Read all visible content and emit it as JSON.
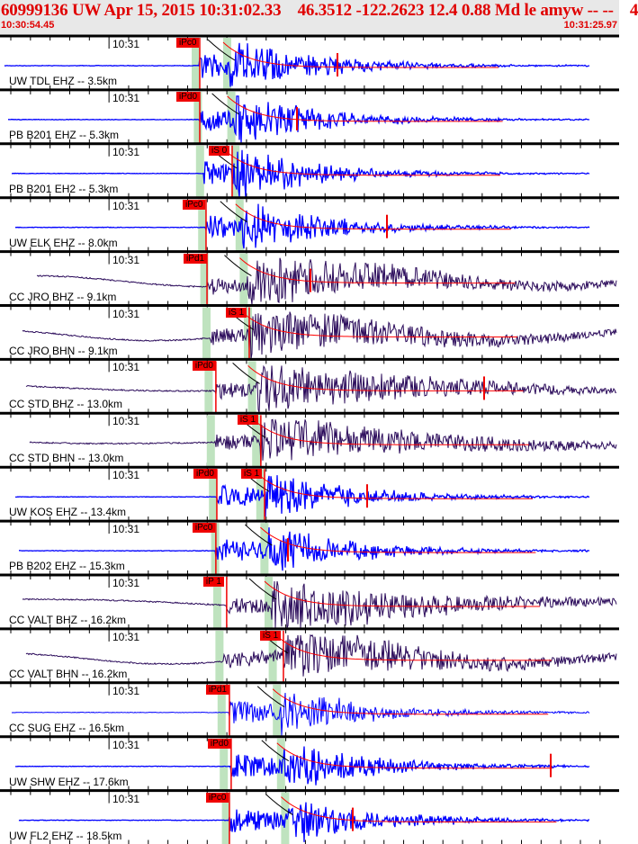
{
  "header": {
    "title": "60999136 UW Apr 15, 2015 10:31:02.33    46.3512 -122.2623 12.4 0.88 Md le amyw -- --    4",
    "start_time": "10:30:54.45",
    "end_time": "10:31:25.97"
  },
  "chart_data": {
    "type": "line",
    "title": "",
    "time_axis": {
      "start": "10:30:54.45",
      "end": "10:31:25.97",
      "tick_label": "10:31",
      "major_tick_seconds": 1
    },
    "colors": {
      "short_period": "#0000ff",
      "broadband": "#2a0a5a",
      "pick": "#f00000",
      "predicted_band": "#bfe3bf",
      "coda_fit": "#ff0000"
    },
    "traces": [
      {
        "label": "UW TDL EHZ -- 3.5km",
        "color": "#0000ff",
        "noise": "flat",
        "picks": [
          {
            "label": "iPc0",
            "time": "10:31:04.62"
          }
        ]
      },
      {
        "label": "PB B201 EHZ -- 5.3km",
        "color": "#0000ff",
        "noise": "flat",
        "picks": [
          {
            "label": "iPd0",
            "time": "10:31:04.62"
          }
        ]
      },
      {
        "label": "PB B201 EH2 -- 5.3km",
        "color": "#0000ff",
        "noise": "flat",
        "picks": [
          {
            "label": "iS 0",
            "time": "10:31:06.27"
          }
        ]
      },
      {
        "label": "UW ELK EHZ -- 8.0km",
        "color": "#0000ff",
        "noise": "flat",
        "picks": [
          {
            "label": "iPc0",
            "time": "10:31:04.94"
          }
        ]
      },
      {
        "label": "CC JRO BHZ -- 9.1km",
        "color": "#2a0a5a",
        "noise": "long-period",
        "picks": [
          {
            "label": "iPd1",
            "time": "10:31:04.99"
          }
        ]
      },
      {
        "label": "CC JRO BHN -- 9.1km",
        "color": "#2a0a5a",
        "noise": "long-period",
        "picks": [
          {
            "label": "iS 1",
            "time": "10:31:07.14"
          }
        ]
      },
      {
        "label": "CC STD BHZ -- 13.0km",
        "color": "#2a0a5a",
        "noise": "drift",
        "picks": [
          {
            "label": "iPd0",
            "time": "10:31:05.44"
          }
        ]
      },
      {
        "label": "CC STD BHN -- 13.0km",
        "color": "#2a0a5a",
        "noise": "drift",
        "picks": [
          {
            "label": "iS 1",
            "time": "10:31:07.73"
          }
        ]
      },
      {
        "label": "UW KOS EHZ -- 13.4km",
        "color": "#0000ff",
        "noise": "flat",
        "picks": [
          {
            "label": "iPd0",
            "time": "10:31:05.49"
          },
          {
            "label": "iS 1",
            "time": "10:31:07.92"
          }
        ]
      },
      {
        "label": "PB B202 EHZ -- 15.3km",
        "color": "#0000ff",
        "noise": "flat",
        "picks": [
          {
            "label": "iPc0",
            "time": "10:31:05.44"
          }
        ]
      },
      {
        "label": "CC VALT BHZ -- 16.2km",
        "color": "#2a0a5a",
        "noise": "drift",
        "picks": [
          {
            "label": "iP 1",
            "time": "10:31:05.99"
          }
        ]
      },
      {
        "label": "CC VALT BHN -- 16.2km",
        "color": "#2a0a5a",
        "noise": "long-period",
        "picks": [
          {
            "label": "iS 1",
            "time": "10:31:08.88"
          }
        ]
      },
      {
        "label": "CC SUG EHZ -- 16.5km",
        "color": "#0000ff",
        "noise": "flat",
        "picks": [
          {
            "label": "iPd1",
            "time": "10:31:06.13"
          }
        ]
      },
      {
        "label": "UW SHW EHZ -- 17.6km",
        "color": "#0000ff",
        "noise": "flat",
        "picks": [
          {
            "label": "iPd0",
            "time": "10:31:06.22"
          }
        ]
      },
      {
        "label": "UW FL2 EHZ -- 18.5km",
        "color": "#0000ff",
        "noise": "flat",
        "picks": [
          {
            "label": "iPc0",
            "time": "10:31:06.13"
          }
        ]
      }
    ]
  }
}
